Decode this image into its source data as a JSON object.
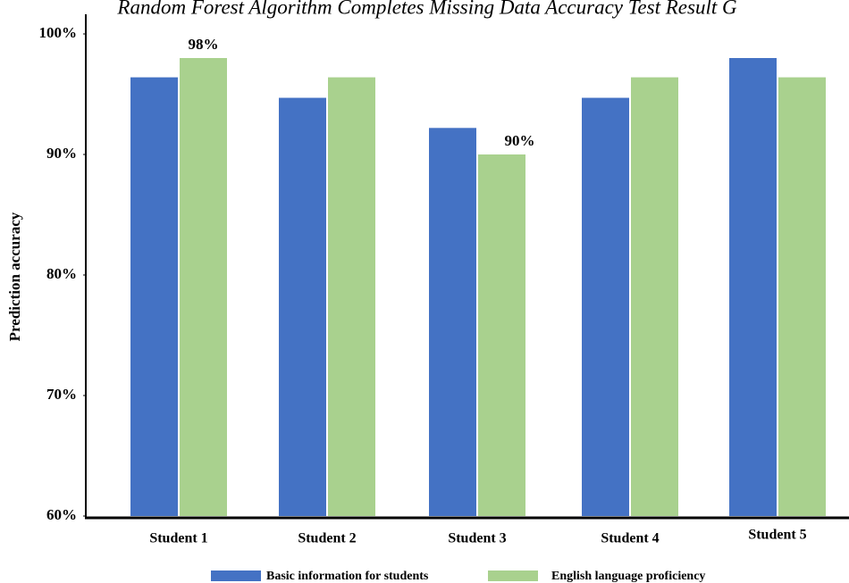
{
  "chart_data": {
    "type": "bar",
    "title": "Random Forest Algorithm Completes Missing Data Accuracy Test Result G",
    "y_label": "Prediction accuracy",
    "categories": [
      "Student 1",
      "Student 2",
      "Student 3",
      "Student 4",
      "Student 5"
    ],
    "series": [
      {
        "name": "Basic information for students",
        "color": "#4472c4",
        "values": [
          96.4,
          94.7,
          92.2,
          94.7,
          98
        ]
      },
      {
        "name": "English language proficiency",
        "color": "#a9d18e",
        "values": [
          98,
          96.4,
          90,
          96.4,
          96.4
        ],
        "value_labels": [
          "98%",
          null,
          "90%",
          null,
          null
        ]
      }
    ],
    "ylim": [
      60,
      100
    ],
    "yticks": [
      {
        "value": 60,
        "label": "60%"
      },
      {
        "value": 70,
        "label": "70%"
      },
      {
        "value": 80,
        "label": "80%"
      },
      {
        "value": 90,
        "label": "90%"
      },
      {
        "value": 100,
        "label": "100%"
      }
    ],
    "legend": "bottom"
  }
}
